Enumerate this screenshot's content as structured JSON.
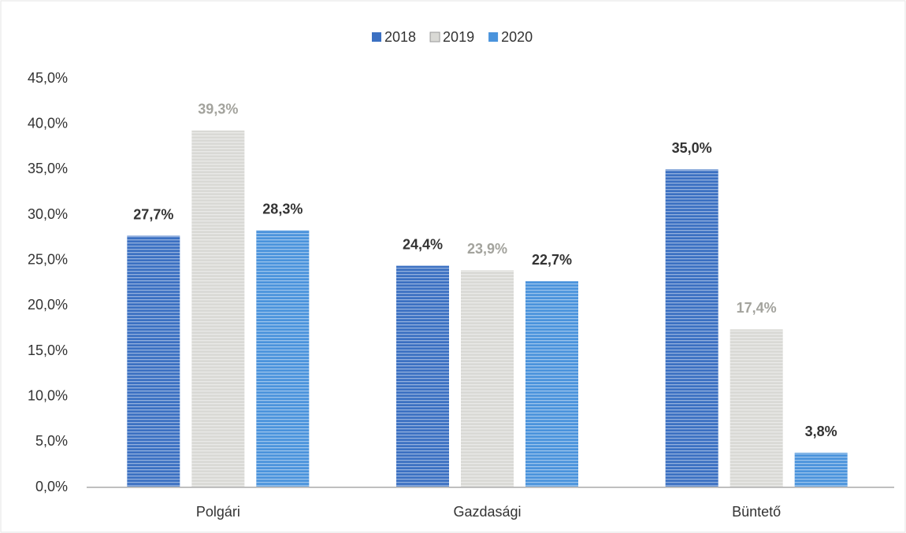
{
  "chart_data": {
    "type": "bar",
    "categories": [
      "Polgári",
      "Gazdasági",
      "Büntető"
    ],
    "series": [
      {
        "name": "2018",
        "color": "#3b70c2",
        "values": [
          27.7,
          24.4,
          35.0
        ],
        "value_labels": [
          "27,7%",
          "24,4%",
          "35,0%"
        ]
      },
      {
        "name": "2019",
        "color": "#d9d9d5",
        "values": [
          39.3,
          23.9,
          17.4
        ],
        "value_labels": [
          "39,3%",
          "23,9%",
          "17,4%"
        ]
      },
      {
        "name": "2020",
        "color": "#4a93dc",
        "values": [
          28.3,
          22.7,
          3.8
        ],
        "value_labels": [
          "28,3%",
          "22,7%",
          "3,8%"
        ]
      }
    ],
    "ylim": [
      0,
      45
    ],
    "yticks": [
      {
        "value": 0,
        "label": "0,0%"
      },
      {
        "value": 5,
        "label": "5,0%"
      },
      {
        "value": 10,
        "label": "10,0%"
      },
      {
        "value": 15,
        "label": "15,0%"
      },
      {
        "value": 20,
        "label": "20,0%"
      },
      {
        "value": 25,
        "label": "25,0%"
      },
      {
        "value": 30,
        "label": "30,0%"
      },
      {
        "value": 35,
        "label": "35,0%"
      },
      {
        "value": 40,
        "label": "40,0%"
      },
      {
        "value": 45,
        "label": "45,0%"
      }
    ],
    "grid": false,
    "legend": "top"
  }
}
